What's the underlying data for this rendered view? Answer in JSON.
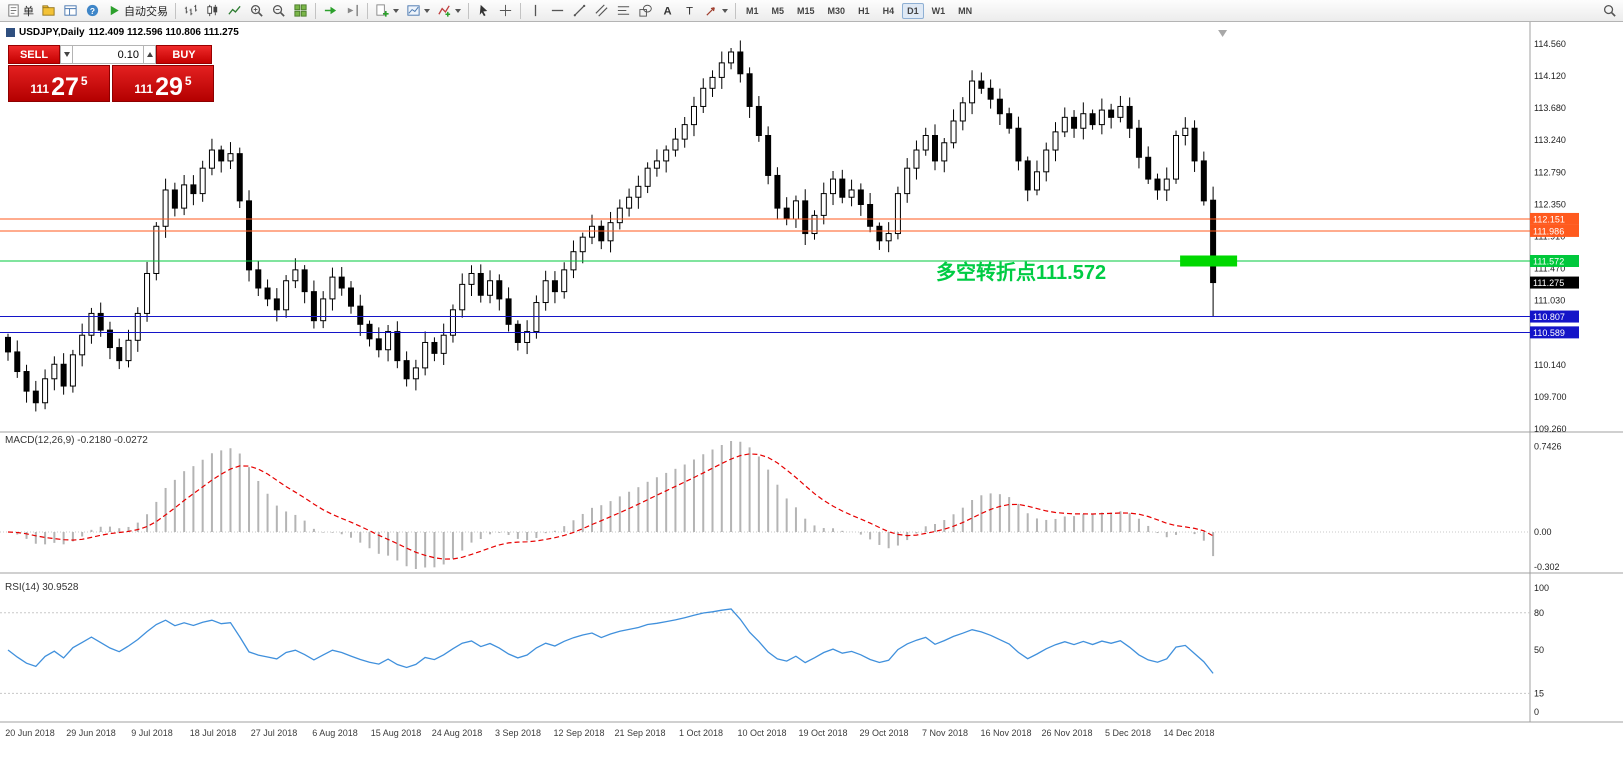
{
  "toolbar": {
    "timeframes": [
      "M1",
      "M5",
      "M15",
      "M30",
      "H1",
      "H4",
      "D1",
      "W1",
      "MN"
    ],
    "active_timeframe": "D1",
    "items": [
      {
        "type": "button",
        "name": "new-order-button",
        "icon": "order-doc",
        "label": "单"
      },
      {
        "type": "icon",
        "name": "profiles-icon",
        "icon": "profiles"
      },
      {
        "type": "icon",
        "name": "terminal-icon",
        "icon": "terminal"
      },
      {
        "type": "icon",
        "name": "help-icon",
        "icon": "help"
      },
      {
        "type": "button",
        "name": "autotrading-button",
        "icon": "play",
        "label": "自动交易"
      },
      {
        "type": "sep"
      },
      {
        "type": "icon",
        "name": "bar-chart-icon",
        "icon": "bars"
      },
      {
        "type": "icon",
        "name": "candlestick-chart-icon",
        "icon": "candles"
      },
      {
        "type": "icon",
        "name": "line-chart-icon",
        "icon": "linechart"
      },
      {
        "type": "icon",
        "name": "zoom-in-icon",
        "icon": "zoomin"
      },
      {
        "type": "icon",
        "name": "zoom-out-icon",
        "icon": "zoomout"
      },
      {
        "type": "icon",
        "name": "tile-windows-icon",
        "icon": "tile"
      },
      {
        "type": "sep"
      },
      {
        "type": "icon",
        "name": "auto-scroll-icon",
        "icon": "autoscroll"
      },
      {
        "type": "icon",
        "name": "chart-shift-icon",
        "icon": "chartshift"
      },
      {
        "type": "sep"
      },
      {
        "type": "icon",
        "name": "new-chart-icon",
        "icon": "newchart",
        "caret": true
      },
      {
        "type": "icon",
        "name": "templates-icon",
        "icon": "templates",
        "caret": true
      },
      {
        "type": "icon",
        "name": "indicators-icon",
        "icon": "indicators",
        "caret": true
      },
      {
        "type": "sep"
      },
      {
        "type": "icon",
        "name": "cursor-icon",
        "icon": "cursor"
      },
      {
        "type": "icon",
        "name": "crosshair-icon",
        "icon": "crosshair"
      },
      {
        "type": "sep"
      },
      {
        "type": "icon",
        "name": "vertical-line-icon",
        "icon": "vline"
      },
      {
        "type": "icon",
        "name": "horizontal-line-icon",
        "icon": "hline"
      },
      {
        "type": "icon",
        "name": "trendline-icon",
        "icon": "trendline"
      },
      {
        "type": "icon",
        "name": "channel-icon",
        "icon": "channel"
      },
      {
        "type": "icon",
        "name": "fibonacci-icon",
        "icon": "fibo"
      },
      {
        "type": "icon",
        "name": "shapes-icon",
        "icon": "shapes"
      },
      {
        "type": "icon",
        "name": "text-icon",
        "icon": "text"
      },
      {
        "type": "icon",
        "name": "text-label-icon",
        "icon": "label"
      },
      {
        "type": "icon",
        "name": "arrow-tools-icon",
        "icon": "arrows",
        "caret": true
      },
      {
        "type": "sep"
      },
      {
        "type": "timeframes"
      },
      {
        "type": "spacer"
      },
      {
        "type": "icon",
        "name": "search-icon",
        "icon": "search"
      }
    ]
  },
  "chart": {
    "symbol_period": "USDJPY,Daily",
    "ohlc_text": "112.409 112.596 110.806 111.275"
  },
  "trade_panel": {
    "sell_label": "SELL",
    "buy_label": "BUY",
    "volume": "0.10",
    "sell_price": {
      "prefix": "111",
      "big": "27",
      "sup": "5"
    },
    "buy_price": {
      "prefix": "111",
      "big": "29",
      "sup": "5"
    },
    "button_color": "#d40000"
  },
  "annotation": {
    "text": "多空转折点111.572",
    "color": "#00cc44",
    "box_color": "#00d800",
    "box_price": 111.572
  },
  "levels": [
    {
      "price": 112.151,
      "label": "112.151",
      "color": "#ff5a1e",
      "line": true
    },
    {
      "price": 111.986,
      "label": "111.986",
      "color": "#ff5a1e",
      "line": true
    },
    {
      "price": 111.572,
      "label": "111.572",
      "color": "#00c83c",
      "line": true
    },
    {
      "price": 111.275,
      "label": "111.275",
      "color": "#000000",
      "line": false
    },
    {
      "price": 110.807,
      "label": "110.807",
      "color": "#1414c8",
      "line": true
    },
    {
      "price": 110.589,
      "label": "110.589",
      "color": "#1414c8",
      "line": true
    }
  ],
  "price_axis": [
    "114.560",
    "114.120",
    "113.680",
    "113.240",
    "112.790",
    "112.350",
    "111.910",
    "111.470",
    "111.030",
    "110.590",
    "110.140",
    "109.700",
    "109.260"
  ],
  "indicators": {
    "macd": {
      "label": "MACD(12,26,9) -0.2180 -0.0272",
      "fast": 12,
      "slow": 26,
      "smoothing": 9,
      "axis": [
        "0.7426",
        "0.00",
        "-0.302"
      ],
      "histogram_color": "#b4b4b4",
      "signal_color": "#e60000"
    },
    "rsi": {
      "label": "RSI(14) 30.9528",
      "period": 14,
      "value": 30.9528,
      "axis": [
        "100",
        "80",
        "50",
        "15",
        "0"
      ],
      "levels": [
        80,
        15
      ],
      "line_color": "#4090dc"
    }
  },
  "chart_data": {
    "type": "candlestick",
    "symbol": "USDJPY",
    "timeframe": "Daily",
    "last_candle": {
      "open": 112.409,
      "high": 112.596,
      "low": 110.806,
      "close": 111.275
    },
    "closes": [
      110.32,
      110.05,
      109.78,
      109.62,
      109.95,
      110.15,
      109.85,
      110.28,
      110.55,
      110.85,
      110.62,
      110.38,
      110.2,
      110.48,
      110.85,
      111.4,
      112.05,
      112.55,
      112.3,
      112.62,
      112.5,
      112.85,
      113.1,
      112.95,
      113.05,
      112.4,
      111.45,
      111.2,
      111.05,
      110.9,
      111.3,
      111.45,
      111.15,
      110.75,
      111.05,
      111.35,
      111.2,
      110.95,
      110.7,
      110.5,
      110.35,
      110.6,
      110.2,
      109.95,
      110.1,
      110.45,
      110.3,
      110.55,
      110.9,
      111.25,
      111.4,
      111.1,
      111.3,
      111.05,
      110.7,
      110.45,
      110.6,
      111.0,
      111.3,
      111.15,
      111.45,
      111.7,
      111.9,
      112.05,
      111.85,
      112.1,
      112.3,
      112.45,
      112.6,
      112.85,
      112.95,
      113.1,
      113.25,
      113.45,
      113.7,
      113.95,
      114.1,
      114.3,
      114.45,
      114.15,
      113.7,
      113.3,
      112.75,
      112.3,
      112.15,
      112.4,
      111.95,
      112.2,
      112.5,
      112.7,
      112.45,
      112.55,
      112.35,
      112.05,
      111.85,
      111.95,
      112.5,
      112.85,
      113.1,
      113.3,
      112.95,
      113.2,
      113.5,
      113.75,
      114.05,
      113.95,
      113.8,
      113.6,
      113.4,
      112.95,
      112.55,
      112.8,
      113.1,
      113.35,
      113.55,
      113.4,
      113.6,
      113.45,
      113.65,
      113.55,
      113.7,
      113.4,
      113.0,
      112.7,
      112.55,
      112.7,
      113.3,
      113.4,
      112.95,
      112.4,
      111.275
    ],
    "date_labels": [
      "20 Jun 2018",
      "29 Jun 2018",
      "9 Jul 2018",
      "18 Jul 2018",
      "27 Jul 2018",
      "6 Aug 2018",
      "15 Aug 2018",
      "24 Aug 2018",
      "3 Sep 2018",
      "12 Sep 2018",
      "21 Sep 2018",
      "1 Oct 2018",
      "10 Oct 2018",
      "19 Oct 2018",
      "29 Oct 2018",
      "7 Nov 2018",
      "16 Nov 2018",
      "26 Nov 2018",
      "5 Dec 2018",
      "14 Dec 2018"
    ]
  }
}
